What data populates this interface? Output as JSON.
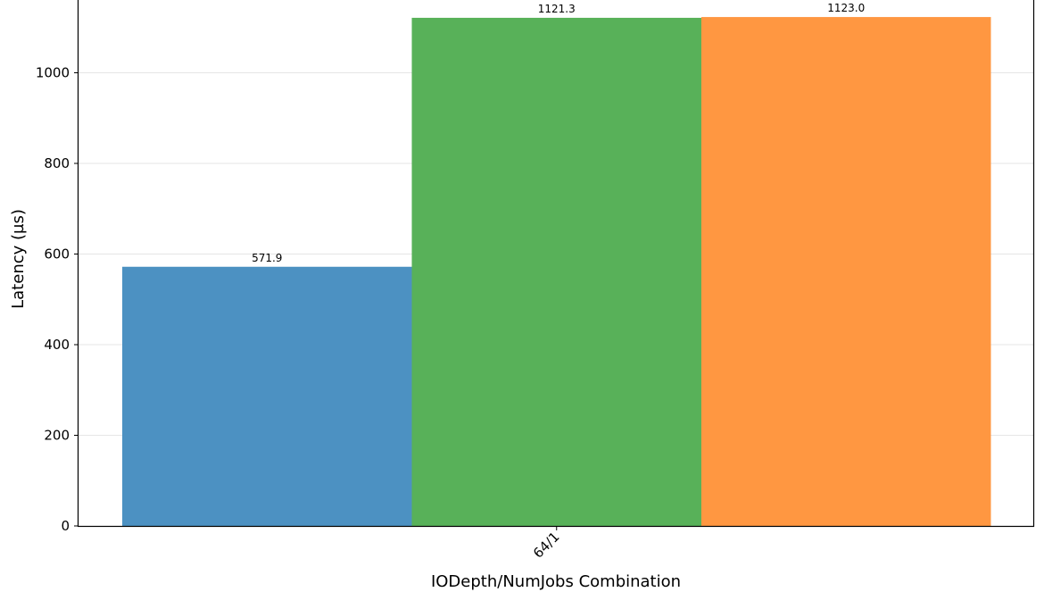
{
  "chart_data": {
    "type": "bar",
    "xlabel": "IODepth/NumJobs Combination",
    "ylabel": "Latency (µs)",
    "categories": [
      "64/1"
    ],
    "series": [
      {
        "values": [
          571.9
        ],
        "color": "#4c91c2",
        "label": "571.9"
      },
      {
        "values": [
          1121.3
        ],
        "color": "#58b159",
        "label": "1121.3"
      },
      {
        "values": [
          1123.0
        ],
        "color": "#ff9741",
        "label": "1123.0"
      }
    ],
    "yticks": [
      0,
      200,
      400,
      600,
      800,
      1000
    ],
    "ylim": [
      0,
      1178
    ],
    "grid": "horizontal"
  }
}
